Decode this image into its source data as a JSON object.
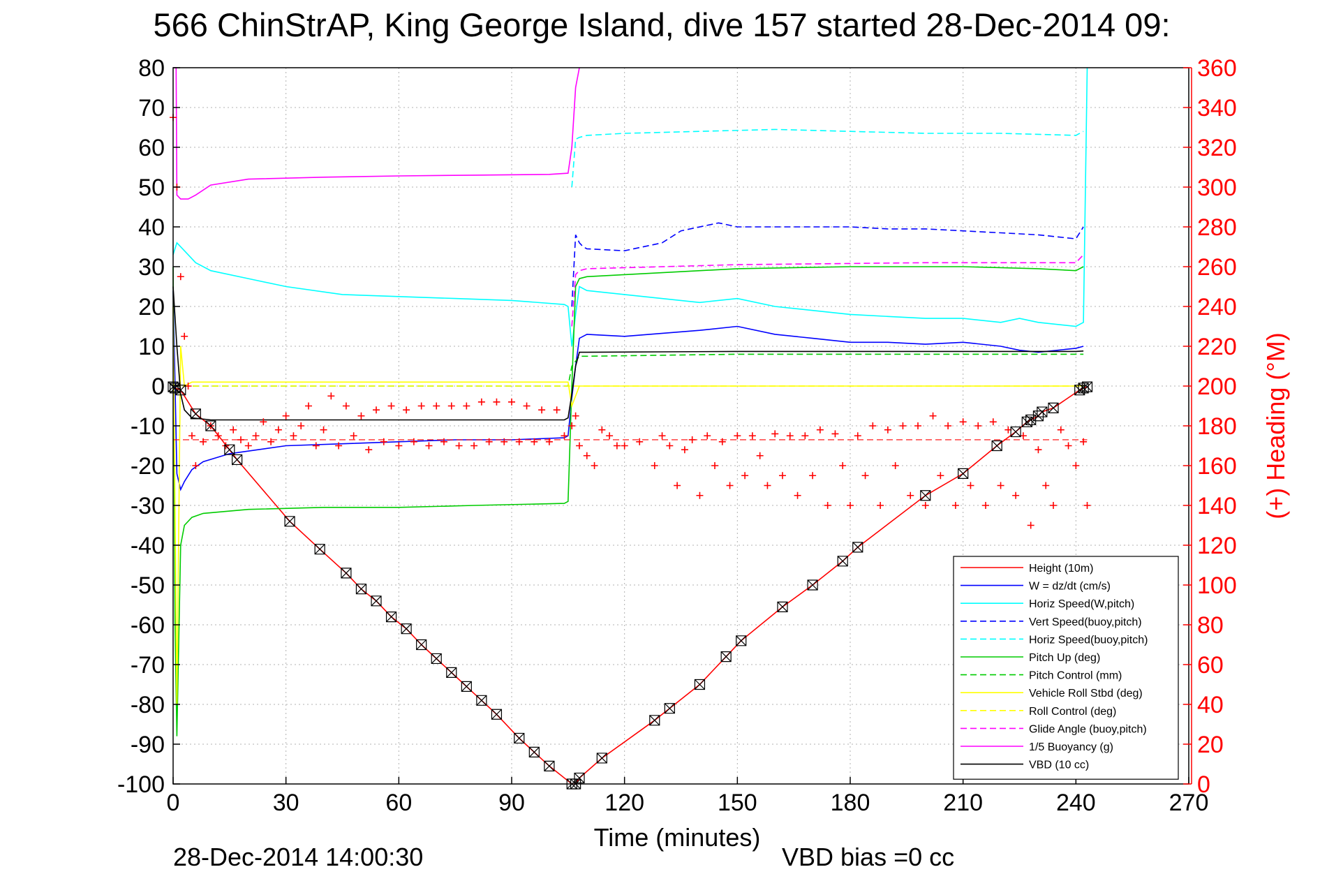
{
  "chart_data": {
    "type": "line",
    "title": "566 ChinStrAP, King George Island, dive 157 started 28-Dec-2014 09:",
    "xlabel": "Time (minutes)",
    "ylabel_right": "(+) Heading (°M)",
    "footer_timestamp": "28-Dec-2014 14:00:30",
    "footer_note": "VBD bias =0 cc",
    "xlim": [
      0,
      270
    ],
    "ylim": [
      -100,
      80
    ],
    "y2lim": [
      0,
      360
    ],
    "x_ticks": [
      "0",
      "30",
      "60",
      "90",
      "120",
      "150",
      "180",
      "210",
      "240",
      "270"
    ],
    "y_ticks": [
      "-100",
      "-90",
      "-80",
      "-70",
      "-60",
      "-50",
      "-40",
      "-30",
      "-20",
      "-10",
      "0",
      "10",
      "20",
      "30",
      "40",
      "50",
      "60",
      "70",
      "80"
    ],
    "y2_ticks": [
      "0",
      "20",
      "40",
      "60",
      "80",
      "100",
      "120",
      "140",
      "160",
      "180",
      "200",
      "220",
      "240",
      "260",
      "280",
      "300",
      "320",
      "340",
      "360"
    ],
    "grid": true,
    "legend_position": "bottom-right",
    "series": [
      {
        "name": "Height (10m)",
        "color": "#ff0000",
        "style": "solid",
        "x": [
          0,
          0.5,
          2,
          6,
          10,
          15,
          17,
          31,
          39,
          46,
          50,
          54,
          58,
          62,
          66,
          70,
          74,
          78,
          82,
          86,
          92,
          96,
          100,
          106,
          107,
          108,
          114,
          128,
          132,
          140,
          147,
          151,
          162,
          170,
          178,
          182,
          200,
          210,
          219,
          224,
          227,
          228,
          230,
          231,
          234,
          241,
          242,
          243
        ],
        "y": [
          -0.2,
          -0.5,
          -1,
          -7,
          -10,
          -16,
          -18.5,
          -34,
          -41,
          -47,
          -51,
          -54,
          -58,
          -61,
          -65,
          -68.5,
          -72,
          -75.5,
          -79,
          -82.5,
          -88.5,
          -92,
          -95.5,
          -100,
          -100,
          -98.5,
          -93.5,
          -84,
          -81,
          -75,
          -68,
          -64,
          -55.5,
          -50,
          -44,
          -40.5,
          -27.5,
          -22,
          -15,
          -11.5,
          -9,
          -8.5,
          -7.5,
          -6.5,
          -5.5,
          -1,
          -0.5,
          -0.2
        ]
      },
      {
        "name": "W = dz/dt (cm/s)",
        "color": "#0000ff",
        "style": "solid",
        "x": [
          0,
          1,
          2,
          3,
          5,
          8,
          15,
          30,
          45,
          60,
          75,
          90,
          104,
          105,
          106,
          107,
          108,
          110,
          120,
          140,
          150,
          160,
          170,
          180,
          190,
          200,
          210,
          220,
          225,
          230,
          240,
          242
        ],
        "y": [
          24,
          -22,
          -26,
          -24,
          -21,
          -19,
          -17,
          -15,
          -14.5,
          -14,
          -13.5,
          -13.5,
          -13,
          -12.5,
          -3,
          5,
          12,
          13,
          12.5,
          14,
          15,
          13,
          12,
          11,
          11,
          10.5,
          11,
          10,
          9,
          8.5,
          9.5,
          10
        ]
      },
      {
        "name": "Horiz Speed(W,pitch)",
        "color": "#00ffff",
        "style": "solid",
        "x": [
          0,
          1,
          3,
          6,
          10,
          20,
          30,
          45,
          60,
          75,
          90,
          104,
          105,
          106,
          107,
          108,
          110,
          120,
          140,
          150,
          160,
          170,
          180,
          190,
          200,
          210,
          220,
          225,
          230,
          240,
          242,
          243
        ],
        "y": [
          33,
          36,
          34,
          31,
          29,
          27,
          25,
          23,
          22.5,
          22,
          21.5,
          20.5,
          20,
          10,
          18,
          25,
          24,
          23,
          21,
          22,
          20,
          19,
          18,
          17.5,
          17,
          17,
          16,
          17,
          16,
          15,
          16,
          80
        ]
      },
      {
        "name": "Vert Speed(buoy,pitch)",
        "color": "#0000ff",
        "style": "dashed",
        "x": [
          106,
          107,
          108,
          109,
          110,
          120,
          130,
          135,
          145,
          150,
          160,
          170,
          180,
          190,
          200,
          210,
          220,
          230,
          240,
          242
        ],
        "y": [
          20,
          38,
          36,
          35,
          34.5,
          34,
          36,
          39,
          41,
          40,
          40,
          40,
          40,
          39.5,
          39.5,
          39,
          38.5,
          38,
          37,
          40
        ]
      },
      {
        "name": "Horiz Speed(buoy,pitch)",
        "color": "#00ffff",
        "style": "dashed",
        "x": [
          106,
          107,
          108,
          110,
          120,
          140,
          160,
          180,
          200,
          220,
          240,
          242
        ],
        "y": [
          50,
          62,
          62.5,
          63,
          63.5,
          64,
          64.5,
          64,
          63.5,
          63.5,
          63,
          64
        ]
      },
      {
        "name": "Pitch Up (deg)",
        "color": "#00cc00",
        "style": "solid",
        "x": [
          0,
          0.5,
          1,
          2,
          3,
          5,
          8,
          20,
          40,
          60,
          80,
          104,
          105,
          106,
          107,
          108,
          110,
          120,
          150,
          180,
          210,
          230,
          240,
          242
        ],
        "y": [
          30,
          -60,
          -88,
          -40,
          -35,
          -33,
          -32,
          -31,
          -30.5,
          -30.5,
          -30,
          -29.5,
          -29,
          0,
          25,
          27,
          27.5,
          28,
          29.5,
          30,
          30,
          29.5,
          29,
          30
        ]
      },
      {
        "name": "Pitch Control (mm)",
        "color": "#00cc00",
        "style": "dashed",
        "x": [
          0,
          105,
          106,
          108,
          110,
          150,
          200,
          240,
          242
        ],
        "y": [
          0,
          0,
          5,
          7.5,
          7.5,
          8,
          8,
          8,
          8
        ]
      },
      {
        "name": "Vehicle Roll Stbd (deg)",
        "color": "#ffff00",
        "style": "solid",
        "x": [
          0,
          1,
          2,
          3,
          5,
          30,
          60,
          90,
          105,
          106,
          108,
          110,
          150,
          200,
          240,
          242
        ],
        "y": [
          20,
          -80,
          10,
          0,
          1,
          1,
          1,
          1,
          1,
          -5,
          0,
          0,
          0,
          0,
          0,
          0
        ]
      },
      {
        "name": "Roll Control (deg)",
        "color": "#ffff00",
        "style": "dashed",
        "x": [
          0,
          242
        ],
        "y": [
          0,
          0
        ]
      },
      {
        "name": "Glide Angle (buoy,pitch)",
        "color": "#ff00ff",
        "style": "dashed",
        "x": [
          106,
          107,
          108,
          110,
          150,
          200,
          240,
          242
        ],
        "y": [
          15,
          28,
          29,
          29.5,
          30.5,
          31,
          31,
          33
        ]
      },
      {
        "name": "1/5 Buoyancy (g)",
        "color": "#ff00ff",
        "style": "solid",
        "x": [
          0,
          0.8,
          1,
          2,
          4,
          6,
          10,
          20,
          40,
          60,
          80,
          100,
          105,
          106,
          107,
          108
        ],
        "y": [
          80,
          80,
          48,
          47,
          47,
          48,
          50.5,
          52,
          52.5,
          52.8,
          53,
          53.2,
          53.5,
          60,
          75,
          80
        ]
      },
      {
        "name": "VBD (10 cc)",
        "color": "#000000",
        "style": "solid",
        "x": [
          0,
          1,
          2,
          3,
          5,
          10,
          20,
          40,
          60,
          80,
          100,
          104,
          105,
          106,
          107,
          108,
          110,
          130,
          150,
          180,
          210,
          240,
          242
        ],
        "y": [
          25,
          10,
          -2,
          -6,
          -8,
          -8.5,
          -8.5,
          -8.5,
          -8.5,
          -8.5,
          -8.5,
          -8.5,
          -8,
          -2,
          5,
          8.5,
          8.5,
          8.6,
          8.7,
          8.7,
          8.7,
          8.7,
          8.8
        ]
      }
    ],
    "heading_series": {
      "color": "#ff0000",
      "mean_line_y2": 173,
      "x": [
        0,
        1,
        2,
        3,
        4,
        5,
        6,
        8,
        10,
        12,
        14,
        16,
        18,
        20,
        22,
        24,
        26,
        28,
        30,
        32,
        34,
        36,
        38,
        40,
        42,
        44,
        46,
        48,
        50,
        52,
        54,
        56,
        58,
        60,
        62,
        64,
        66,
        68,
        70,
        72,
        74,
        76,
        78,
        80,
        82,
        84,
        86,
        88,
        90,
        92,
        94,
        96,
        98,
        100,
        102,
        104,
        106,
        107,
        108,
        110,
        112,
        114,
        116,
        118,
        120,
        124,
        128,
        130,
        132,
        134,
        136,
        138,
        140,
        142,
        144,
        146,
        148,
        150,
        152,
        154,
        156,
        158,
        160,
        162,
        164,
        166,
        168,
        170,
        172,
        174,
        176,
        178,
        180,
        182,
        184,
        186,
        188,
        190,
        192,
        194,
        196,
        198,
        200,
        202,
        204,
        206,
        208,
        210,
        212,
        214,
        216,
        218,
        220,
        222,
        224,
        226,
        228,
        230,
        232,
        234,
        236,
        238,
        240,
        242,
        243
      ],
      "y2": [
        335,
        300,
        255,
        225,
        200,
        175,
        160,
        172,
        180,
        175,
        170,
        178,
        173,
        170,
        175,
        182,
        172,
        178,
        185,
        175,
        180,
        190,
        170,
        178,
        195,
        170,
        190,
        175,
        185,
        168,
        188,
        172,
        190,
        170,
        188,
        172,
        190,
        170,
        190,
        172,
        190,
        170,
        190,
        170,
        192,
        172,
        192,
        172,
        192,
        172,
        190,
        172,
        188,
        172,
        188,
        175,
        180,
        185,
        170,
        165,
        160,
        178,
        175,
        170,
        170,
        172,
        160,
        175,
        170,
        150,
        168,
        173,
        145,
        175,
        160,
        172,
        150,
        175,
        155,
        175,
        165,
        150,
        176,
        155,
        175,
        145,
        175,
        155,
        178,
        140,
        176,
        160,
        140,
        175,
        155,
        180,
        140,
        178,
        160,
        180,
        145,
        180,
        140,
        185,
        155,
        180,
        140,
        182,
        150,
        180,
        140,
        182,
        150,
        178,
        145,
        175,
        130,
        168,
        150,
        140,
        178,
        170,
        160,
        172,
        140
      ]
    }
  }
}
